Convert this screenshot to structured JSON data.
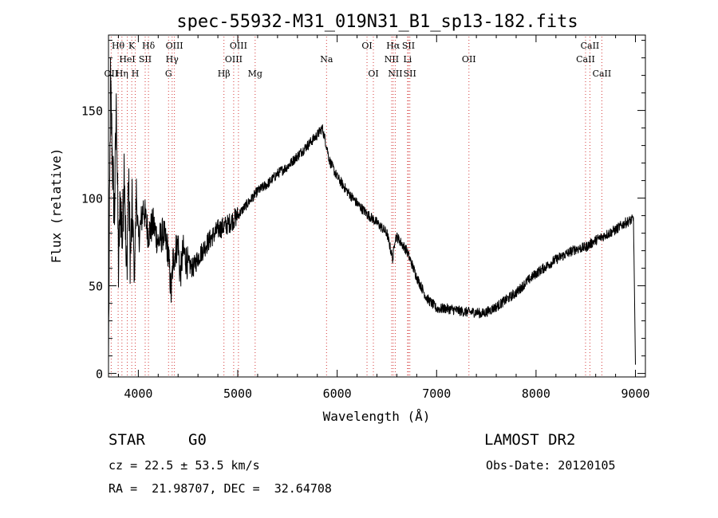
{
  "chart_data": {
    "type": "line",
    "title": "spec-55932-M31_019N31_B1_sp13-182.fits",
    "xlabel": "Wavelength (Å)",
    "ylabel": "Flux (relative)",
    "xlim": [
      3700,
      9100
    ],
    "ylim": [
      -2,
      193
    ],
    "x_ticks": [
      4000,
      5000,
      6000,
      7000,
      8000,
      9000
    ],
    "y_ticks": [
      0,
      50,
      100,
      150
    ],
    "grid": false,
    "series": [
      {
        "x": [
          3700,
          3720,
          3740,
          3760,
          3780,
          3800,
          3820,
          3840,
          3860,
          3880,
          3900,
          3920,
          3940,
          3960,
          3980,
          4000,
          4050,
          4100,
          4150,
          4200,
          4250,
          4300,
          4330,
          4350,
          4400,
          4420,
          4450,
          4500,
          4550,
          4600,
          4700,
          4800,
          4900,
          5000,
          5100,
          5200,
          5300,
          5400,
          5500,
          5600,
          5700,
          5800,
          5850,
          5880,
          5900,
          5920,
          5950,
          6000,
          6100,
          6200,
          6300,
          6400,
          6500,
          6560,
          6580,
          6600,
          6700,
          6800,
          6900,
          7000,
          7100,
          7200,
          7300,
          7400,
          7450,
          7500,
          7600,
          7700,
          7800,
          7900,
          8000,
          8100,
          8200,
          8300,
          8400,
          8500,
          8600,
          8700,
          8800,
          8900,
          8980,
          9000
        ],
        "y": [
          5,
          165,
          120,
          90,
          155,
          60,
          100,
          75,
          125,
          50,
          110,
          65,
          95,
          55,
          105,
          75,
          95,
          80,
          85,
          75,
          80,
          70,
          45,
          65,
          75,
          55,
          70,
          62,
          60,
          66,
          75,
          82,
          85,
          90,
          97,
          104,
          108,
          114,
          118,
          124,
          130,
          136,
          140,
          133,
          128,
          122,
          118,
          112,
          104,
          97,
          91,
          86,
          80,
          65,
          77,
          78,
          70,
          55,
          43,
          37,
          37,
          36,
          35,
          35,
          34,
          35,
          38,
          42,
          46,
          52,
          57,
          61,
          65,
          68,
          71,
          72,
          76,
          79,
          82,
          86,
          88,
          5
        ]
      }
    ],
    "line_labels": [
      {
        "label": "Hθ",
        "x": 3797,
        "row": 0
      },
      {
        "label": "K",
        "x": 3934,
        "row": 0
      },
      {
        "label": "Hδ",
        "x": 4102,
        "row": 0
      },
      {
        "label": "OIII",
        "x": 4363,
        "row": 0
      },
      {
        "label": "OIII",
        "x": 5007,
        "row": 0
      },
      {
        "label": "OI",
        "x": 6300,
        "row": 0
      },
      {
        "label": "Hα",
        "x": 6563,
        "row": 0
      },
      {
        "label": "SII",
        "x": 6717,
        "row": 0
      },
      {
        "label": "CaII",
        "x": 8542,
        "row": 0
      },
      {
        "label": "HeI",
        "x": 3889,
        "row": 1
      },
      {
        "label": "SII",
        "x": 4069,
        "row": 1
      },
      {
        "label": "Hγ",
        "x": 4340,
        "row": 1
      },
      {
        "label": "OIII",
        "x": 4959,
        "row": 1
      },
      {
        "label": "Na",
        "x": 5893,
        "row": 1
      },
      {
        "label": "NII",
        "x": 6548,
        "row": 1
      },
      {
        "label": "Li",
        "x": 6708,
        "row": 1
      },
      {
        "label": "OII",
        "x": 7325,
        "row": 1
      },
      {
        "label": "CaII",
        "x": 8498,
        "row": 1
      },
      {
        "label": "OII",
        "x": 3727,
        "row": 2
      },
      {
        "label": "Hη",
        "x": 3835,
        "row": 2
      },
      {
        "label": "H",
        "x": 3969,
        "row": 2
      },
      {
        "label": "G",
        "x": 4304,
        "row": 2
      },
      {
        "label": "Hβ",
        "x": 4861,
        "row": 2
      },
      {
        "label": "Mg",
        "x": 5175,
        "row": 2
      },
      {
        "label": "OI",
        "x": 6364,
        "row": 2
      },
      {
        "label": "NII",
        "x": 6584,
        "row": 2
      },
      {
        "label": "SII",
        "x": 6731,
        "row": 2
      },
      {
        "label": "CaII",
        "x": 8662,
        "row": 2
      }
    ]
  },
  "info": {
    "class_label": "STAR",
    "subclass": "G0",
    "survey": "LAMOST DR2",
    "velocity": "cz = 22.5 ± 53.5 km/s",
    "obs_date": "Obs-Date: 20120105",
    "coords": "RA =  21.98707, DEC =  32.64708"
  },
  "colors": {
    "spectrum": "#000000",
    "line_markers": "#d43a3a",
    "axes": "#000000"
  }
}
